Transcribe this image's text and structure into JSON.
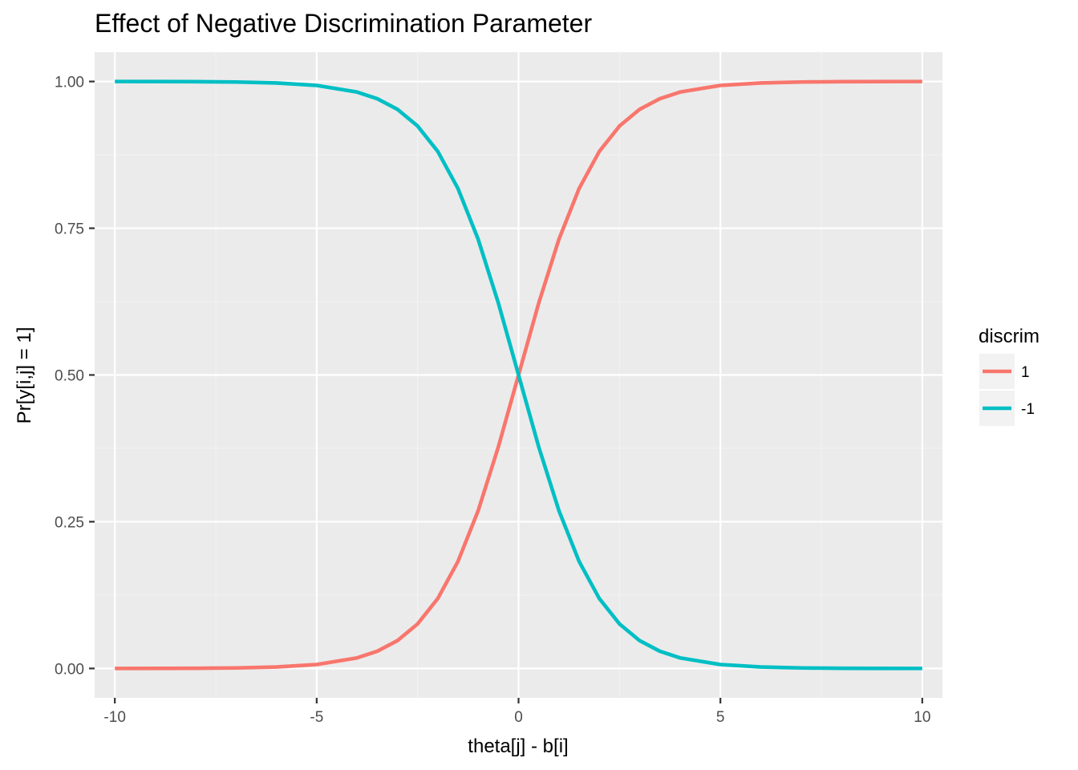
{
  "chart_data": {
    "type": "line",
    "title": "Effect of Negative Discrimination Parameter",
    "xlabel": "theta[j] - b[i]",
    "ylabel": "Pr[y[i,j] = 1]",
    "xlim": [
      -10.5,
      10.5
    ],
    "ylim": [
      -0.05,
      1.05
    ],
    "x_ticks": [
      -10,
      -5,
      0,
      5,
      10
    ],
    "x_tick_labels": [
      "-10",
      "-5",
      "0",
      "5",
      "10"
    ],
    "y_ticks": [
      0,
      0.25,
      0.5,
      0.75,
      1
    ],
    "y_tick_labels": [
      "0.00",
      "0.25",
      "0.50",
      "0.75",
      "1.00"
    ],
    "grid": true,
    "legend": {
      "title": "discrim",
      "position": "right",
      "entries": [
        "1",
        "-1"
      ]
    },
    "series": [
      {
        "name": "1",
        "color": "#F8766D",
        "discrimination": 1,
        "x": [
          -10,
          -9,
          -8,
          -7,
          -6,
          -5,
          -4,
          -3.5,
          -3,
          -2.5,
          -2,
          -1.5,
          -1,
          -0.5,
          0,
          0.5,
          1,
          1.5,
          2,
          2.5,
          3,
          3.5,
          4,
          5,
          6,
          7,
          8,
          9,
          10
        ],
        "values": [
          4.54e-05,
          0.000123,
          0.000335,
          0.000911,
          0.00247,
          0.00669,
          0.018,
          0.0293,
          0.0474,
          0.0759,
          0.1192,
          0.1824,
          0.2689,
          0.3775,
          0.5,
          0.6225,
          0.7311,
          0.8176,
          0.8808,
          0.9241,
          0.9526,
          0.9707,
          0.982,
          0.99331,
          0.99753,
          0.99909,
          0.99966,
          0.99988,
          0.99995
        ]
      },
      {
        "name": "-1",
        "color": "#00BFC4",
        "discrimination": -1,
        "x": [
          -10,
          -9,
          -8,
          -7,
          -6,
          -5,
          -4,
          -3.5,
          -3,
          -2.5,
          -2,
          -1.5,
          -1,
          -0.5,
          0,
          0.5,
          1,
          1.5,
          2,
          2.5,
          3,
          3.5,
          4,
          5,
          6,
          7,
          8,
          9,
          10
        ],
        "values": [
          0.99995,
          0.99988,
          0.99966,
          0.99909,
          0.99753,
          0.99331,
          0.982,
          0.9707,
          0.9526,
          0.9241,
          0.8808,
          0.8176,
          0.7311,
          0.6225,
          0.5,
          0.3775,
          0.2689,
          0.1824,
          0.1192,
          0.0759,
          0.0474,
          0.0293,
          0.018,
          0.00669,
          0.00247,
          0.000911,
          0.000335,
          0.000123,
          4.54e-05
        ]
      }
    ]
  },
  "colors": {
    "panel_background": "#EBEBEB",
    "grid_major": "#FFFFFF",
    "grid_minor": "#F2F2F2",
    "legend_key_background": "#F2F2F2"
  }
}
